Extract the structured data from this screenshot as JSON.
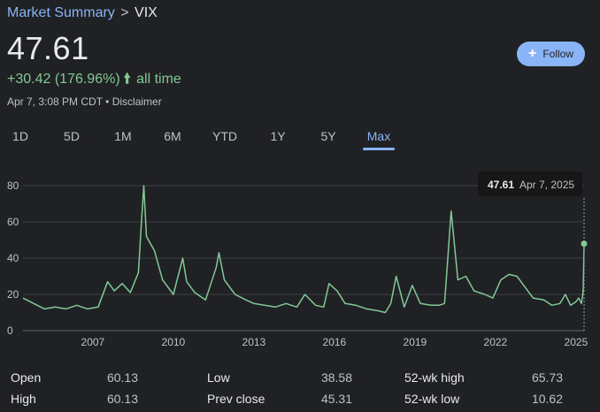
{
  "breadcrumb": {
    "parent": "Market Summary",
    "separator": ">",
    "current": "VIX"
  },
  "quote": {
    "price": "47.61",
    "change": "+30.42 (176.96%)",
    "arrow_icon": "arrow-up-icon",
    "period": "all time",
    "timestamp": "Apr 7, 3:08 PM CDT",
    "separator": "•",
    "disclaimer": "Disclaimer"
  },
  "follow": {
    "label": "Follow",
    "icon": "plus-icon"
  },
  "tabs": [
    "1D",
    "5D",
    "1M",
    "6M",
    "YTD",
    "1Y",
    "5Y",
    "Max"
  ],
  "active_tab": "Max",
  "tooltip": {
    "value": "47.61",
    "date": "Apr 7, 2025"
  },
  "colors": {
    "line": "#81c995",
    "accent": "#8ab4f8",
    "background": "#202124",
    "grid": "#3c4043"
  },
  "chart_data": {
    "type": "line",
    "title": "",
    "xlabel": "",
    "ylabel": "",
    "x_ticks": [
      "2007",
      "2010",
      "2013",
      "2016",
      "2019",
      "2022",
      "2025"
    ],
    "y_ticks": [
      "0",
      "20",
      "40",
      "60",
      "80"
    ],
    "ylim": [
      0,
      80
    ],
    "xlim": [
      2004.4,
      2025.3
    ],
    "grid": true,
    "series": [
      {
        "x": [
          2004.4,
          2004.8,
          2005.2,
          2005.6,
          2006.0,
          2006.4,
          2006.8,
          2007.2,
          2007.55,
          2007.8,
          2008.1,
          2008.4,
          2008.7,
          2008.82,
          2008.9,
          2009.0,
          2009.3,
          2009.6,
          2010.0,
          2010.35,
          2010.5,
          2010.8,
          2011.2,
          2011.6,
          2011.7,
          2011.9,
          2012.3,
          2012.7,
          2013.0,
          2013.4,
          2013.8,
          2014.2,
          2014.6,
          2014.9,
          2015.3,
          2015.6,
          2015.8,
          2016.1,
          2016.4,
          2016.8,
          2017.2,
          2017.6,
          2017.9,
          2018.1,
          2018.3,
          2018.6,
          2018.9,
          2019.2,
          2019.6,
          2019.9,
          2020.1,
          2020.2,
          2020.35,
          2020.6,
          2020.9,
          2021.2,
          2021.6,
          2021.9,
          2022.2,
          2022.5,
          2022.8,
          2023.1,
          2023.4,
          2023.8,
          2024.1,
          2024.4,
          2024.6,
          2024.8,
          2025.0,
          2025.1,
          2025.2,
          2025.25,
          2025.27,
          2025.3
        ],
        "values": [
          18,
          15,
          12,
          13,
          12,
          14,
          12,
          13,
          27,
          22,
          26,
          21,
          32,
          62,
          80,
          52,
          44,
          28,
          20,
          40,
          27,
          21,
          17,
          35,
          43,
          28,
          20,
          17,
          15,
          14,
          13,
          15,
          13,
          20,
          14,
          13,
          26,
          22,
          15,
          14,
          12,
          11,
          10,
          15,
          30,
          13,
          25,
          15,
          14,
          14,
          15,
          35,
          66,
          28,
          30,
          22,
          20,
          18,
          28,
          31,
          30,
          24,
          18,
          17,
          14,
          15,
          20,
          14,
          16,
          18,
          15,
          20,
          24,
          48
        ]
      }
    ]
  },
  "stats": [
    {
      "label": "Open",
      "value": "60.13"
    },
    {
      "label": "High",
      "value": "60.13"
    },
    {
      "label": "Low",
      "value": "38.58"
    },
    {
      "label": "Prev close",
      "value": "45.31"
    },
    {
      "label": "52-wk high",
      "value": "65.73"
    },
    {
      "label": "52-wk low",
      "value": "10.62"
    }
  ]
}
